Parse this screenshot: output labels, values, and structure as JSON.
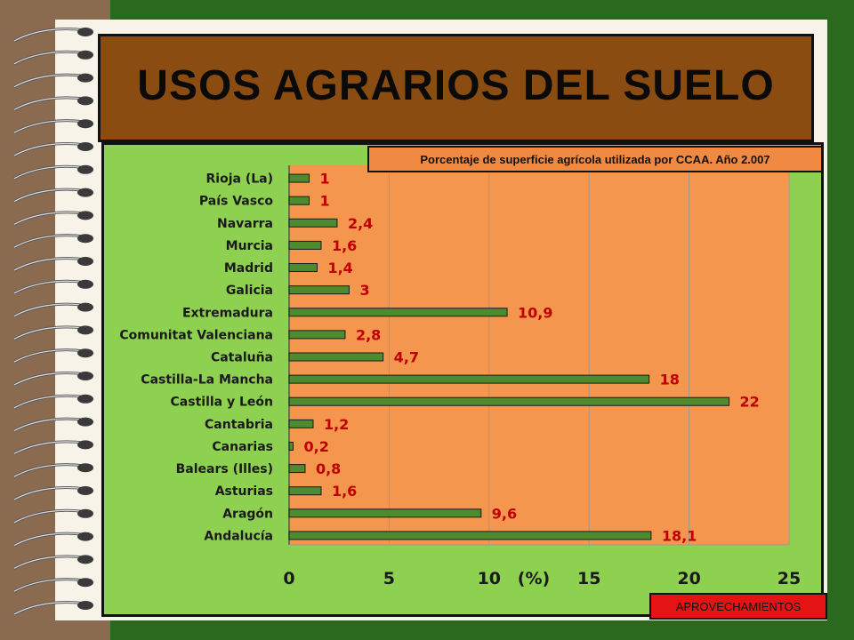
{
  "title": "USOS AGRARIOS DEL SUELO",
  "badge": "APROVECHAMIENTOS",
  "colors": {
    "background": "#2a6a1e",
    "title_box": "#8b4c12",
    "chart_panel": "#8ed04f",
    "plot_area": "#f5964e",
    "bar": "#4e8b2e",
    "value_label": "#c00000",
    "badge": "#e41414"
  },
  "chart_data": {
    "type": "bar",
    "orientation": "horizontal",
    "title": "Porcentaje de superficie agrícola utilizada por CCAA. Año 2.007",
    "xlabel": "(%)",
    "ylabel": "",
    "xlim": [
      0,
      25
    ],
    "xticks": [
      0,
      5,
      10,
      15,
      20,
      25
    ],
    "grid": true,
    "categories": [
      "Rioja (La)",
      "País Vasco",
      "Navarra",
      "Murcia",
      "Madrid",
      "Galicia",
      "Extremadura",
      "Comunitat Valenciana",
      "Cataluña",
      "Castilla-La Mancha",
      "Castilla y León",
      "Cantabria",
      "Canarias",
      "Balears (Illes)",
      "Asturias",
      "Aragón",
      "Andalucía"
    ],
    "values": [
      1,
      1,
      2.4,
      1.6,
      1.4,
      3,
      10.9,
      2.8,
      4.7,
      18,
      22,
      1.2,
      0.2,
      0.8,
      1.6,
      9.6,
      18.1
    ],
    "value_labels": [
      "1",
      "1",
      "2,4",
      "1,6",
      "1,4",
      "3",
      "10,9",
      "2,8",
      "4,7",
      "18",
      "22",
      "1,2",
      "0,2",
      "0,8",
      "1,6",
      "9,6",
      "18,1"
    ]
  }
}
